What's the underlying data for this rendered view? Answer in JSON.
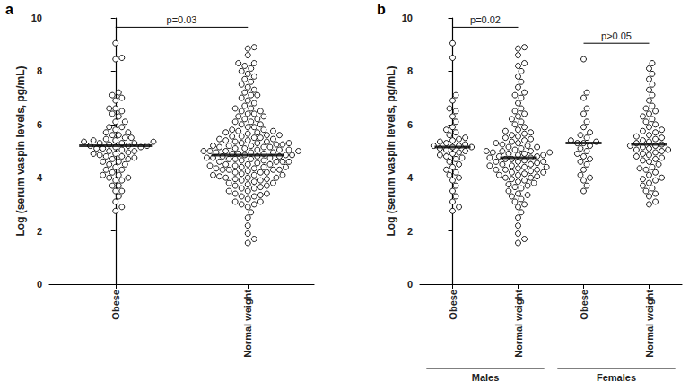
{
  "chart_data": [
    {
      "type": "scatter",
      "panel": "a",
      "y_label": "Log (serum vaspin levels, pg/mL)",
      "categories": [
        "Obese",
        "Normal weight"
      ],
      "values": [
        [
          9.05,
          8.5,
          7.1,
          6.9,
          6.6,
          6.5,
          6.3,
          6.1,
          5.9,
          5.8,
          5.7,
          5.6,
          5.5,
          5.45,
          5.4,
          5.35,
          5.3,
          5.25,
          5.2,
          5.15,
          5.15,
          5.1,
          5.05,
          5.0,
          4.95,
          4.9,
          4.85,
          4.8,
          4.75,
          4.7,
          4.6,
          4.5,
          4.4,
          4.3,
          4.2,
          4.1,
          4.0,
          3.9,
          3.7,
          3.5,
          3.3,
          3.1,
          2.9,
          2.75,
          5.2,
          8.45,
          7.2,
          7.0,
          6.6,
          6.4,
          6.1,
          5.9,
          5.7,
          5.6,
          5.5,
          5.4,
          5.35,
          5.3,
          5.3,
          5.2,
          5.1,
          5.0,
          4.9,
          4.8,
          4.7,
          4.6,
          4.5,
          4.3,
          4.1,
          3.9,
          3.7,
          3.5,
          4.0
        ],
        [
          8.9,
          8.85,
          8.6,
          8.3,
          8.2,
          8.0,
          7.8,
          7.6,
          7.4,
          7.2,
          7.0,
          6.8,
          6.6,
          6.4,
          6.3,
          6.2,
          6.1,
          6.0,
          5.9,
          5.8,
          5.75,
          5.7,
          5.6,
          5.55,
          5.5,
          5.45,
          5.4,
          5.35,
          5.3,
          5.25,
          5.2,
          5.15,
          5.1,
          5.05,
          5.0,
          5.0,
          4.95,
          4.9,
          4.9,
          4.85,
          4.85,
          4.8,
          4.8,
          4.75,
          4.75,
          4.7,
          4.7,
          4.65,
          4.6,
          4.6,
          4.55,
          4.5,
          4.5,
          4.45,
          4.4,
          4.4,
          4.35,
          4.3,
          4.3,
          4.25,
          4.2,
          4.2,
          4.15,
          4.1,
          4.1,
          4.05,
          4.0,
          4.0,
          3.95,
          3.9,
          3.85,
          3.8,
          3.75,
          3.7,
          3.65,
          3.6,
          3.5,
          3.4,
          3.3,
          3.2,
          3.1,
          3.0,
          2.9,
          2.7,
          2.5,
          2.2,
          1.9,
          1.7,
          1.55,
          5.65,
          5.0,
          4.6,
          4.3,
          5.3,
          6.5,
          7.1,
          3.35,
          4.45,
          4.95,
          5.15,
          8.3,
          8.1,
          7.9,
          7.7,
          7.5,
          7.3,
          7.1,
          6.9,
          6.7,
          6.5,
          6.4,
          6.3,
          6.2,
          6.1,
          6.0,
          5.9,
          5.8,
          5.7,
          5.6,
          5.55,
          5.5,
          5.45,
          5.4,
          5.35,
          5.3,
          5.25,
          5.2,
          5.2,
          5.15,
          5.1,
          5.05,
          5.0,
          4.95,
          4.9,
          4.85,
          4.8,
          4.75,
          4.7,
          4.6,
          4.5,
          4.4,
          4.3,
          4.2,
          4.1,
          4.0,
          3.9,
          3.8,
          3.7,
          3.6,
          3.5,
          3.4,
          3.3,
          3.1,
          3.0,
          4.65,
          5.75,
          6.6,
          4.35,
          5.05,
          3.95
        ]
      ],
      "medians": [
        5.2,
        4.85
      ],
      "ylim": [
        0,
        10
      ],
      "yticks": [
        0,
        2,
        4,
        6,
        8,
        10
      ],
      "grid": false,
      "marker": "open circle",
      "color": "#000000",
      "comparisons": [
        {
          "text": "p=0.03",
          "categories": [
            0,
            1
          ]
        }
      ]
    },
    {
      "type": "scatter",
      "panel": "b",
      "y_label": "Log (serum vaspin levels, pg/mL)",
      "categories": [
        "Obese",
        "Normal weight",
        "Obese",
        "Normal weight"
      ],
      "groups": [
        {
          "label": "Males",
          "size": 2
        },
        {
          "label": "Females",
          "size": 2
        }
      ],
      "values": [
        [
          9.05,
          8.5,
          7.1,
          6.9,
          6.6,
          6.5,
          6.3,
          6.1,
          5.9,
          5.8,
          5.7,
          5.6,
          5.5,
          5.45,
          5.4,
          5.35,
          5.3,
          5.25,
          5.2,
          5.15,
          5.15,
          5.1,
          5.05,
          5.0,
          4.95,
          4.9,
          4.85,
          4.8,
          4.75,
          4.7,
          4.6,
          4.5,
          4.4,
          4.3,
          4.2,
          4.1,
          4.0,
          3.9,
          3.7,
          3.5,
          3.3,
          3.1,
          2.9,
          2.75,
          5.2
        ],
        [
          8.9,
          8.85,
          8.6,
          8.3,
          8.2,
          8.0,
          7.8,
          7.6,
          7.4,
          7.2,
          7.0,
          6.8,
          6.6,
          6.4,
          6.3,
          6.2,
          6.1,
          6.0,
          5.9,
          5.8,
          5.75,
          5.7,
          5.6,
          5.55,
          5.5,
          5.45,
          5.4,
          5.35,
          5.3,
          5.25,
          5.2,
          5.15,
          5.1,
          5.05,
          5.0,
          5.0,
          4.95,
          4.9,
          4.9,
          4.85,
          4.85,
          4.8,
          4.8,
          4.75,
          4.75,
          4.7,
          4.7,
          4.65,
          4.6,
          4.6,
          4.55,
          4.5,
          4.5,
          4.45,
          4.4,
          4.4,
          4.35,
          4.3,
          4.3,
          4.25,
          4.2,
          4.2,
          4.15,
          4.1,
          4.1,
          4.05,
          4.0,
          4.0,
          3.95,
          3.9,
          3.85,
          3.8,
          3.75,
          3.7,
          3.65,
          3.6,
          3.5,
          3.4,
          3.3,
          3.2,
          3.1,
          3.0,
          2.9,
          2.7,
          2.5,
          2.2,
          1.9,
          1.7,
          1.55,
          5.65,
          5.0,
          4.6,
          4.3,
          5.3,
          6.5,
          7.1,
          3.35,
          4.45,
          4.95,
          5.15
        ],
        [
          8.45,
          7.2,
          7.0,
          6.6,
          6.4,
          6.1,
          5.9,
          5.7,
          5.6,
          5.5,
          5.4,
          5.35,
          5.3,
          5.3,
          5.2,
          5.1,
          5.0,
          4.9,
          4.8,
          4.7,
          4.6,
          4.5,
          4.3,
          4.1,
          3.9,
          3.7,
          3.5,
          4.0
        ],
        [
          8.3,
          8.1,
          7.9,
          7.7,
          7.5,
          7.3,
          7.1,
          6.9,
          6.7,
          6.5,
          6.4,
          6.3,
          6.2,
          6.1,
          6.0,
          5.9,
          5.8,
          5.7,
          5.6,
          5.55,
          5.5,
          5.45,
          5.4,
          5.35,
          5.3,
          5.25,
          5.2,
          5.2,
          5.15,
          5.1,
          5.05,
          5.0,
          4.95,
          4.9,
          4.85,
          4.8,
          4.75,
          4.7,
          4.6,
          4.5,
          4.4,
          4.3,
          4.2,
          4.1,
          4.0,
          3.9,
          3.8,
          3.7,
          3.6,
          3.5,
          3.4,
          3.3,
          3.1,
          3.0,
          4.65,
          5.75,
          6.6,
          4.35,
          5.05,
          3.95
        ]
      ],
      "medians": [
        5.15,
        4.75,
        5.3,
        5.25
      ],
      "ylim": [
        0,
        10
      ],
      "yticks": [
        0,
        2,
        4,
        6,
        8,
        10
      ],
      "grid": false,
      "marker": "open circle",
      "color": "#000000",
      "comparisons": [
        {
          "text": "p=0.02",
          "categories": [
            0,
            1
          ]
        },
        {
          "text": "p>0.05",
          "categories": [
            2,
            3
          ]
        }
      ]
    }
  ]
}
